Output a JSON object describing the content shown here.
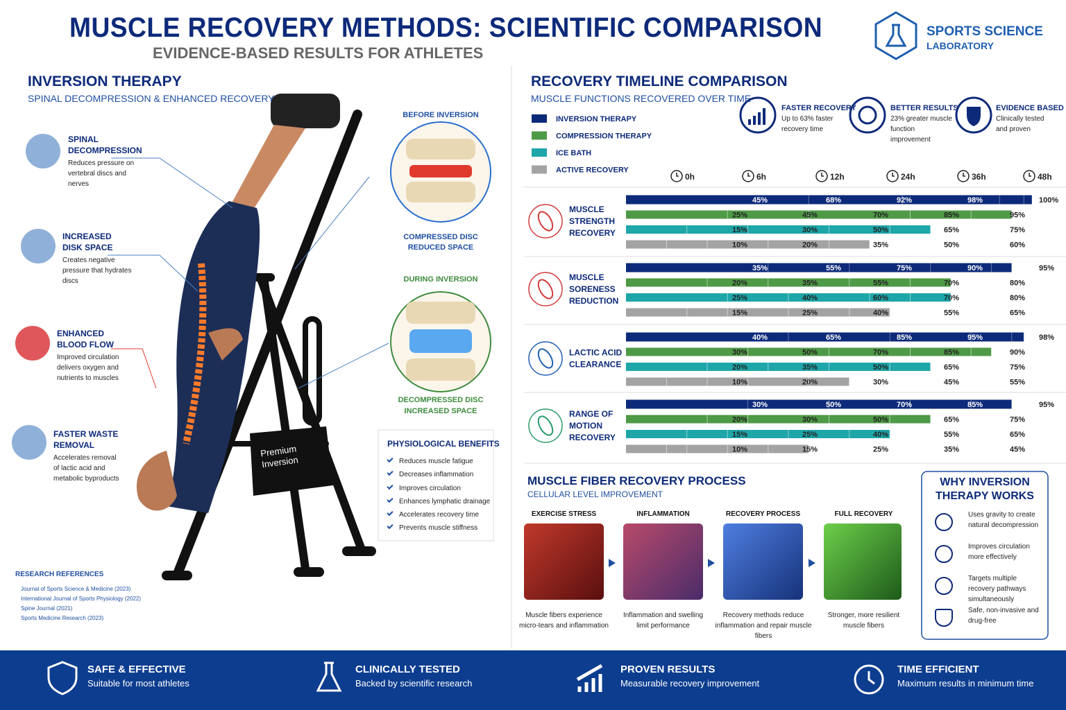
{
  "header": {
    "title": "MUSCLE RECOVERY METHODS: SCIENTIFIC COMPARISON",
    "subtitle": "EVIDENCE-BASED RESULTS FOR ATHLETES",
    "logo": [
      "SPORTS SCIENCE",
      "LABORATORY"
    ]
  },
  "inversion": {
    "title": "INVERSION THERAPY",
    "subtitle": "SPINAL DECOMPRESSION & ENHANCED RECOVERY",
    "benefits": [
      {
        "title": "SPINAL DECOMPRESSION",
        "text": "Reduces pressure on vertebral discs and nerves"
      },
      {
        "title": "INCREASED DISK SPACE",
        "text": "Creates negative pressure that hydrates discs"
      },
      {
        "title": "ENHANCED BLOOD FLOW",
        "text": "Improved circulation delivers oxygen and nutrients to muscles"
      },
      {
        "title": "FASTER WASTE REMOVAL",
        "text": "Accelerates removal of lactic acid and metabolic byproducts"
      }
    ],
    "before": {
      "label": "BEFORE INVERSION",
      "caption": [
        "COMPRESSED DISC",
        "REDUCED SPACE"
      ]
    },
    "during": {
      "label": "DURING INVERSION",
      "caption": [
        "DECOMPRESSED DISC",
        "INCREASED SPACE"
      ]
    },
    "table_label": [
      "Premium",
      "Inversion"
    ],
    "physiological": {
      "title": "PHYSIOLOGICAL BENEFITS",
      "items": [
        "Reduces muscle fatigue",
        "Decreases inflammation",
        "Improves circulation",
        "Enhances lymphatic drainage",
        "Accelerates recovery time",
        "Prevents muscle stiffness"
      ]
    },
    "references": {
      "title": "RESEARCH REFERENCES",
      "items": [
        "Journal of Sports Science & Medicine (2023)",
        "International Journal of Sports Physiology (2022)",
        "Spine Journal (2021)",
        "Sports Medicine Research (2023)"
      ]
    }
  },
  "chart_data": {
    "type": "bar",
    "title": "RECOVERY TIMELINE COMPARISON",
    "subtitle": "MUSCLE FUNCTIONS RECOVERED OVER TIME",
    "highlights": [
      {
        "title": "FASTER RECOVERY",
        "text": "Up to 63% faster recovery time"
      },
      {
        "title": "BETTER RESULTS",
        "text": "23% greater muscle function improvement"
      },
      {
        "title": "EVIDENCE BASED",
        "text": "Clinically tested and proven"
      }
    ],
    "x": [
      "0h",
      "6h",
      "12h",
      "24h",
      "36h",
      "48h"
    ],
    "xlim": [
      0,
      100
    ],
    "series": [
      {
        "name": "INVERSION THERAPY",
        "color": "#0d2a7a"
      },
      {
        "name": "COMPRESSION THERAPY",
        "color": "#4f9a47"
      },
      {
        "name": "ICE BATH",
        "color": "#1ea6a9"
      },
      {
        "name": "ACTIVE RECOVERY",
        "color": "#a3a3a3"
      }
    ],
    "groups": [
      {
        "name": "MUSCLE STRENGTH RECOVERY",
        "values": [
          [
            null,
            45,
            68,
            92,
            98,
            100
          ],
          [
            null,
            25,
            45,
            70,
            85,
            95
          ],
          [
            null,
            15,
            30,
            50,
            65,
            75
          ],
          [
            null,
            10,
            20,
            35,
            50,
            60
          ]
        ],
        "value_labels": [
          [
            null,
            "45%",
            "68%",
            "92%",
            "98%",
            "100%"
          ],
          [
            null,
            "25%",
            "45%",
            "70%",
            "85%",
            "95%"
          ],
          [
            null,
            "15%",
            "30%",
            "50%",
            "65%",
            "75%"
          ],
          [
            null,
            "10%",
            "20%",
            "35%",
            "50%",
            "60%"
          ]
        ]
      },
      {
        "name": "MUSCLE SORENESS REDUCTION",
        "values": [
          [
            null,
            35,
            55,
            75,
            90,
            95
          ],
          [
            null,
            20,
            35,
            55,
            70,
            80
          ],
          [
            null,
            25,
            40,
            60,
            70,
            80
          ],
          [
            null,
            15,
            25,
            40,
            55,
            65
          ]
        ],
        "value_labels": [
          [
            null,
            "35%",
            "55%",
            "75%",
            "90%",
            "95%"
          ],
          [
            null,
            "20%",
            "35%",
            "55%",
            "70%",
            "80%"
          ],
          [
            null,
            "25%",
            "40%",
            "60%",
            "70%",
            "80%"
          ],
          [
            null,
            "15%",
            "25%",
            "40%",
            "55%",
            "65%"
          ]
        ]
      },
      {
        "name": "LACTIC ACID CLEARANCE",
        "values": [
          [
            null,
            40,
            65,
            85,
            95,
            98
          ],
          [
            null,
            30,
            50,
            70,
            85,
            90
          ],
          [
            null,
            20,
            35,
            50,
            65,
            75
          ],
          [
            null,
            10,
            20,
            30,
            45,
            55
          ]
        ],
        "value_labels": [
          [
            null,
            "40%",
            "65%",
            "85%",
            "95%",
            "98%"
          ],
          [
            null,
            "30%",
            "50%",
            "70%",
            "85%",
            "90%"
          ],
          [
            null,
            "20%",
            "35%",
            "50%",
            "65%",
            "75%"
          ],
          [
            null,
            "10%",
            "20%",
            "30%",
            "45%",
            "55%"
          ]
        ]
      },
      {
        "name": "RANGE OF MOTION RECOVERY",
        "values": [
          [
            null,
            30,
            50,
            70,
            85,
            95
          ],
          [
            null,
            20,
            30,
            50,
            65,
            75
          ],
          [
            null,
            15,
            25,
            40,
            55,
            65
          ],
          [
            null,
            10,
            15,
            25,
            35,
            45
          ]
        ],
        "value_labels": [
          [
            null,
            "30%",
            "50%",
            "70%",
            "85%",
            "95%"
          ],
          [
            null,
            "20%",
            "30%",
            "50%",
            "65%",
            "75%"
          ],
          [
            null,
            "15%",
            "25%",
            "40%",
            "55%",
            "65%"
          ],
          [
            null,
            "10%",
            "15%",
            "25%",
            "35%",
            "45%"
          ]
        ]
      }
    ]
  },
  "fiber": {
    "title": "MUSCLE FIBER RECOVERY PROCESS",
    "subtitle": "CELLULAR LEVEL IMPROVEMENT",
    "steps": [
      {
        "title": "EXERCISE STRESS",
        "text": "Muscle fibers experience micro-tears and inflammation"
      },
      {
        "title": "INFLAMMATION",
        "text": "Inflammation and swelling limit performance"
      },
      {
        "title": "RECOVERY PROCESS",
        "text": "Recovery methods reduce inflammation and repair muscle fibers"
      },
      {
        "title": "FULL RECOVERY",
        "text": "Stronger, more resilient muscle fibers"
      }
    ]
  },
  "why": {
    "title": "WHY INVERSION THERAPY WORKS",
    "items": [
      "Uses gravity to create natural decompression",
      "Improves circulation more effectively",
      "Targets multiple recovery pathways simultaneously",
      "Safe, non-invasive and drug-free"
    ]
  },
  "footer": {
    "items": [
      {
        "title": "SAFE & EFFECTIVE",
        "text": "Suitable for most athletes"
      },
      {
        "title": "CLINICALLY TESTED",
        "text": "Backed by scientific research"
      },
      {
        "title": "PROVEN RESULTS",
        "text": "Measurable recovery improvement"
      },
      {
        "title": "TIME EFFICIENT",
        "text": "Maximum results in minimum time"
      }
    ]
  }
}
